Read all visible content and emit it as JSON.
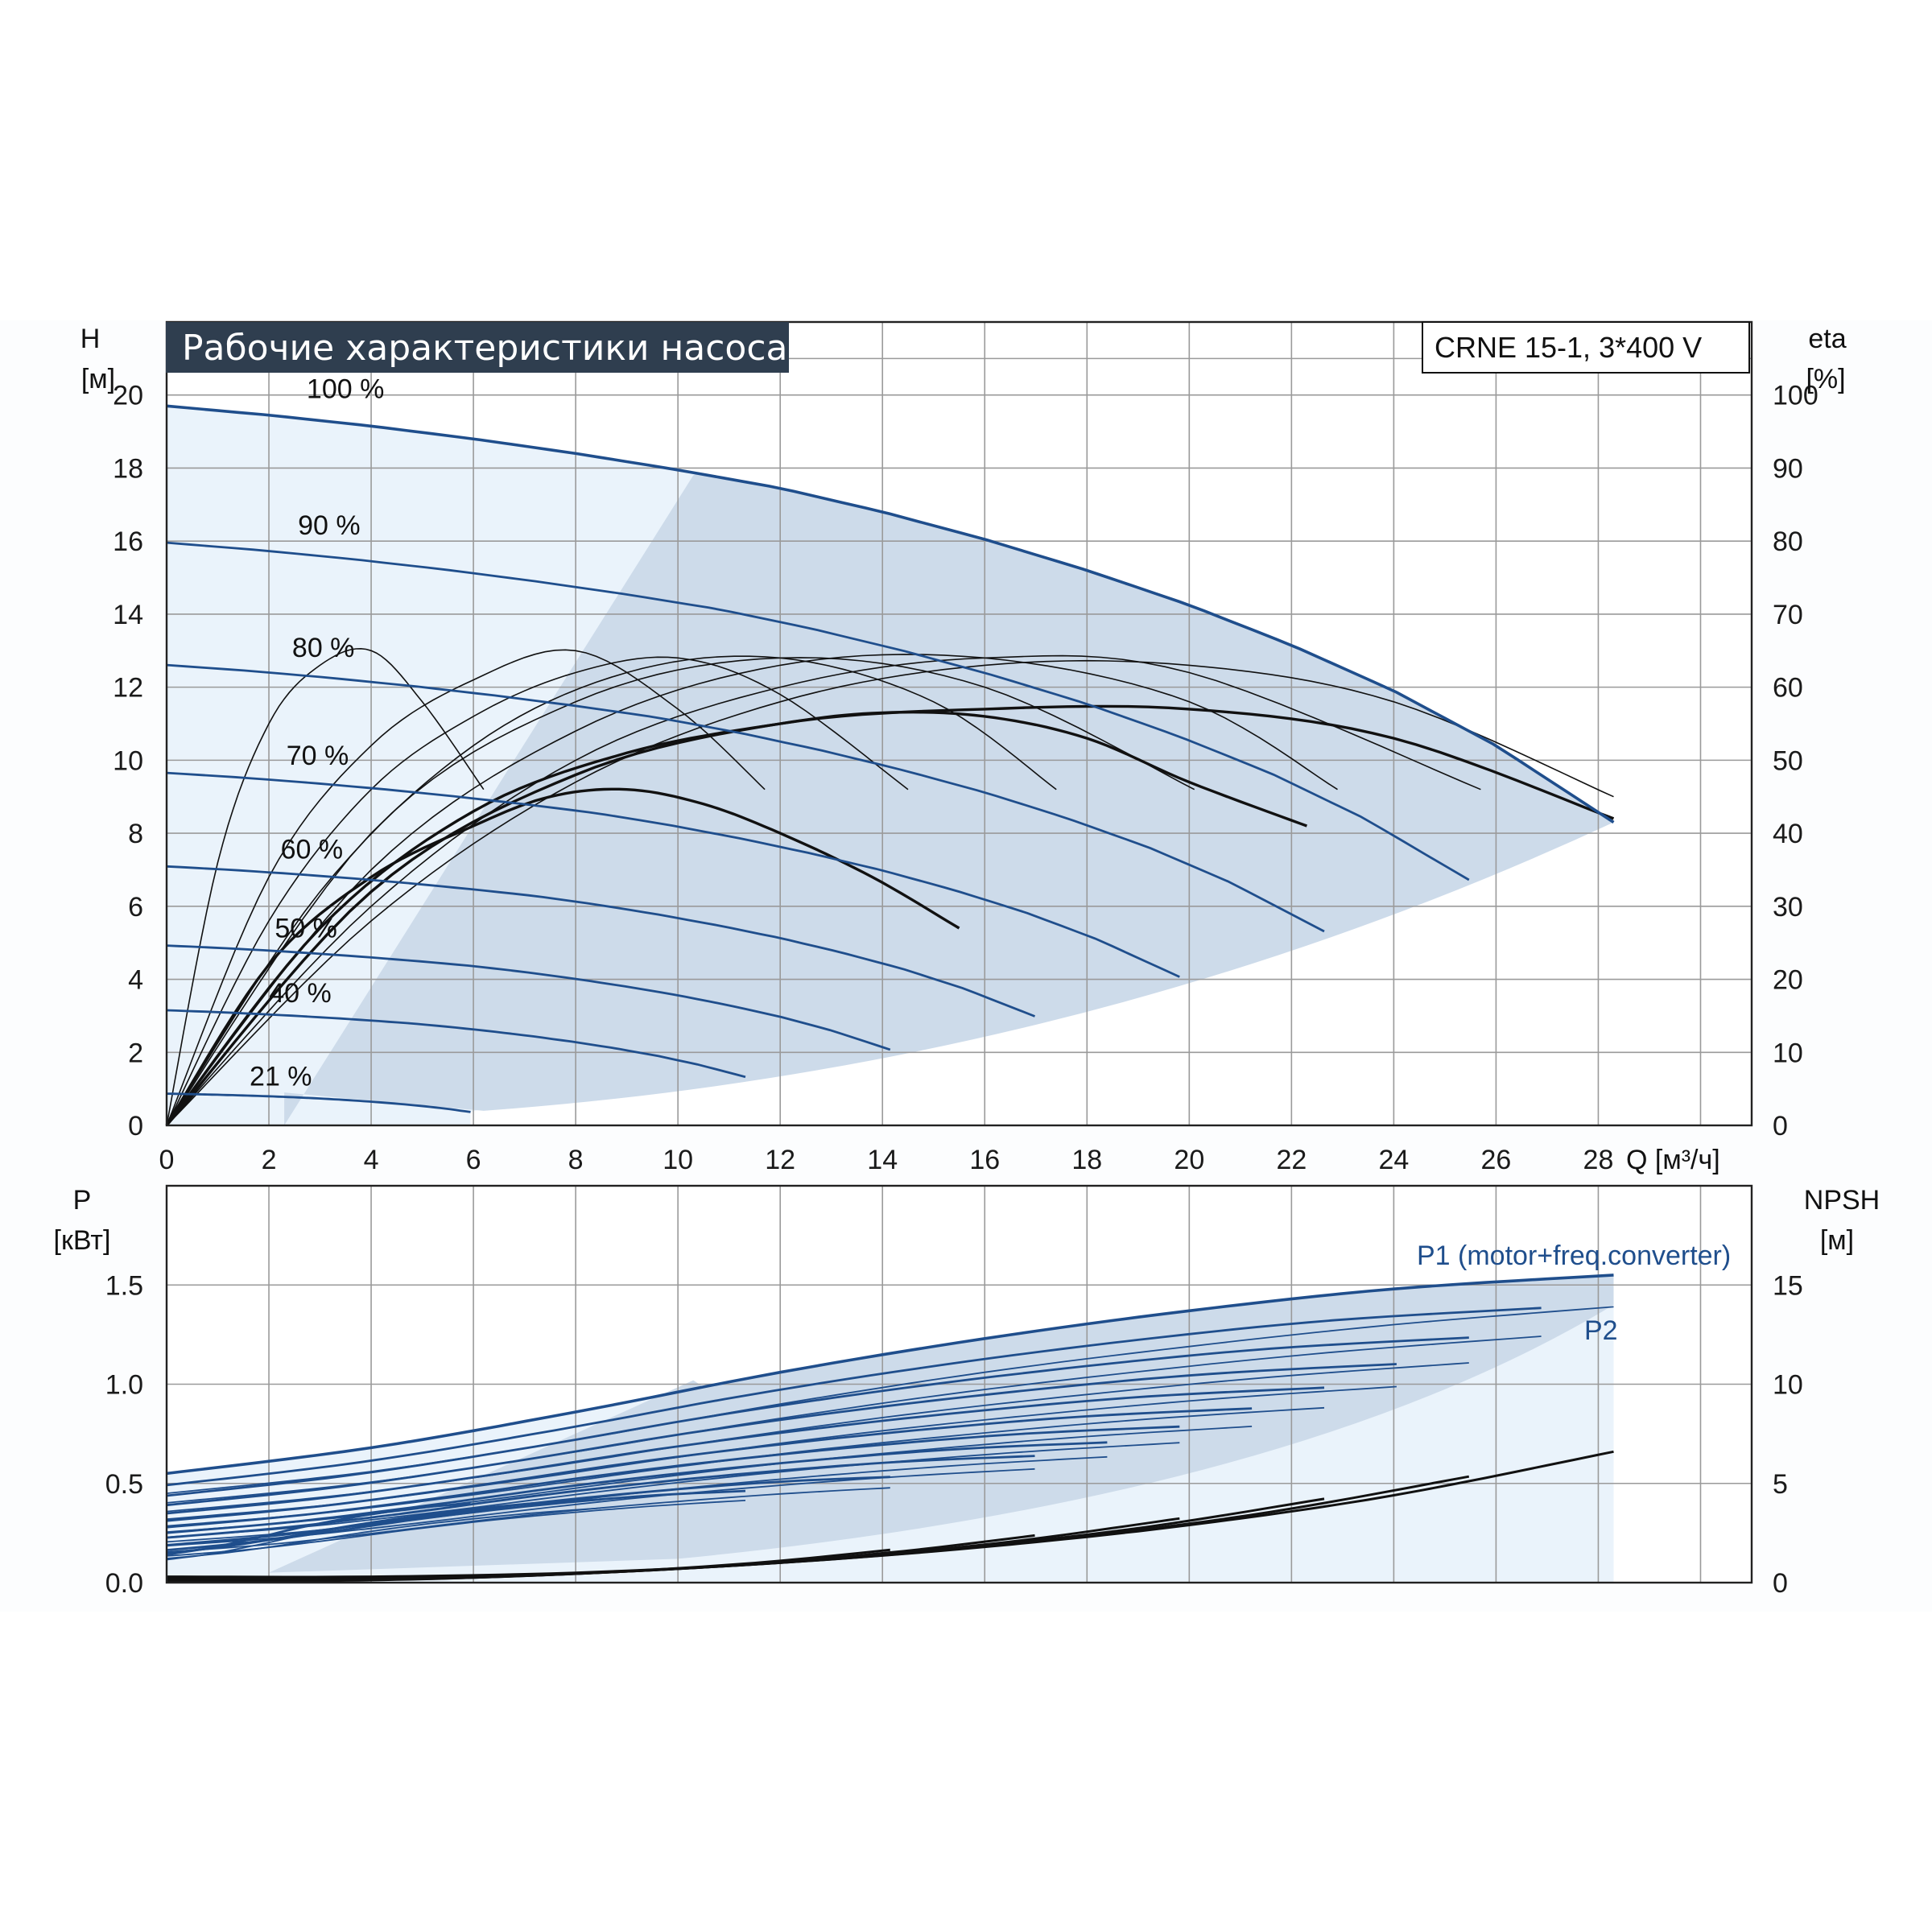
{
  "title": "Рабочие характеристики насоса",
  "model": "CRNE 15-1, 3*400 V",
  "colors": {
    "accent": "#1f4e8c",
    "pale_fill": "#eaf3fb",
    "operating_fill": "#cddbea",
    "grid": "#9a9a9a",
    "title_bg": "#2f3e4f"
  },
  "chart_data": [
    {
      "type": "line",
      "name": "head-efficiency",
      "ylabel": "H",
      "yunit": "[м]",
      "y2label": "eta",
      "y2unit": "[%]",
      "xlabel": "Q [м³/ч]",
      "xlim": [
        0,
        31
      ],
      "ylim": [
        0,
        22
      ],
      "y2lim": [
        0,
        110
      ],
      "xticks": [
        "0",
        "2",
        "4",
        "6",
        "8",
        "10",
        "12",
        "14",
        "16",
        "18",
        "20",
        "22",
        "24",
        "26",
        "28"
      ],
      "yticks": [
        "0",
        "2",
        "4",
        "6",
        "8",
        "10",
        "12",
        "14",
        "16",
        "18",
        "20"
      ],
      "y2ticks": [
        "0",
        "10",
        "20",
        "30",
        "40",
        "50",
        "60",
        "70",
        "80",
        "90",
        "100"
      ],
      "grid": true,
      "speed_curves": [
        {
          "label": "100 %",
          "speed": 1.0
        },
        {
          "label": "90 %",
          "speed": 0.9
        },
        {
          "label": "80 %",
          "speed": 0.8
        },
        {
          "label": "70 %",
          "speed": 0.7
        },
        {
          "label": "60 %",
          "speed": 0.6
        },
        {
          "label": "50 %",
          "speed": 0.5
        },
        {
          "label": "40 %",
          "speed": 0.4
        },
        {
          "label": "21 %",
          "speed": 0.21
        }
      ],
      "head_100": {
        "x": [
          0,
          2,
          4,
          6,
          8,
          10,
          12,
          14,
          16,
          18,
          20,
          22,
          24,
          26,
          28.3
        ],
        "y": [
          19.7,
          19.45,
          19.15,
          18.8,
          18.4,
          17.95,
          17.45,
          16.8,
          16.05,
          15.2,
          14.25,
          13.15,
          11.9,
          10.4,
          8.3
        ]
      },
      "efficiency_curves": [
        {
          "x": [
            0,
            1,
            2,
            3,
            4,
            5,
            6.2
          ],
          "y": [
            0,
            36,
            55,
            63,
            65,
            58,
            46
          ]
        },
        {
          "x": [
            0,
            2,
            4,
            6,
            8,
            10,
            11.7
          ],
          "y": [
            0,
            34,
            52,
            61,
            65,
            57,
            46
          ]
        },
        {
          "x": [
            0,
            2,
            4,
            6,
            8,
            10,
            12,
            14.5
          ],
          "y": [
            0,
            28,
            46,
            56,
            62,
            64,
            59,
            46
          ]
        },
        {
          "x": [
            0,
            3,
            6,
            9,
            12,
            15,
            17.4
          ],
          "y": [
            0,
            32,
            52,
            62,
            64,
            58,
            46
          ]
        },
        {
          "x": [
            0,
            4,
            8,
            12,
            16,
            20.1
          ],
          "y": [
            0,
            40,
            58,
            64,
            60,
            46
          ]
        },
        {
          "x": [
            0,
            4,
            8,
            12,
            16,
            20,
            22.9
          ],
          "y": [
            0,
            35,
            54,
            63,
            64,
            58,
            46
          ]
        },
        {
          "x": [
            0,
            4,
            8,
            12,
            16,
            20,
            25.7
          ],
          "y": [
            0,
            30,
            50,
            60,
            64,
            62,
            46
          ]
        },
        {
          "x": [
            0,
            4,
            8,
            12,
            16,
            20,
            24,
            28.3
          ],
          "y": [
            0,
            28,
            47,
            58,
            63,
            63,
            58,
            45
          ]
        },
        {
          "x": [
            0,
            2,
            4,
            6,
            7.5,
            9,
            10.5,
            12,
            13.8,
            15.5
          ],
          "y": [
            0,
            22,
            34,
            41,
            45,
            46,
            44,
            40,
            34,
            27
          ]
        },
        {
          "x": [
            0,
            3,
            6,
            9,
            12,
            14,
            16,
            18,
            20,
            22.3
          ],
          "y": [
            0,
            27,
            43,
            51,
            55,
            56.5,
            56,
            53,
            47,
            41
          ]
        },
        {
          "x": [
            0,
            4,
            8,
            12,
            16,
            20,
            24,
            28.3
          ],
          "y": [
            0,
            32,
            48,
            55,
            57,
            57,
            53,
            42
          ]
        }
      ]
    },
    {
      "type": "line",
      "name": "power-npsh",
      "ylabel": "P",
      "yunit": "[кВт]",
      "y2label": "NPSH",
      "y2unit": "[м]",
      "xlim": [
        0,
        31
      ],
      "ylim": [
        0,
        2.0
      ],
      "y2lim": [
        0,
        20
      ],
      "yticks": [
        "0.0",
        "0.5",
        "1.0",
        "1.5"
      ],
      "y2ticks": [
        "0",
        "5",
        "10",
        "15"
      ],
      "grid": true,
      "series": [
        {
          "name": "P1 (motor+freq.converter)",
          "x": [
            0,
            4,
            8,
            12,
            16,
            20,
            24,
            28.3
          ],
          "y": [
            0.55,
            0.68,
            0.86,
            1.06,
            1.23,
            1.37,
            1.48,
            1.55
          ]
        },
        {
          "name": "P2",
          "x": [
            0,
            4,
            8,
            12,
            16,
            20,
            24,
            28.3
          ],
          "y": [
            0.45,
            0.56,
            0.72,
            0.9,
            1.06,
            1.19,
            1.3,
            1.39
          ]
        }
      ],
      "npsh": {
        "x": [
          0,
          4,
          8,
          12,
          16,
          20,
          24,
          28.3
        ],
        "y": [
          0.3,
          0.3,
          0.5,
          1.0,
          1.8,
          2.9,
          4.4,
          6.6
        ]
      }
    }
  ]
}
